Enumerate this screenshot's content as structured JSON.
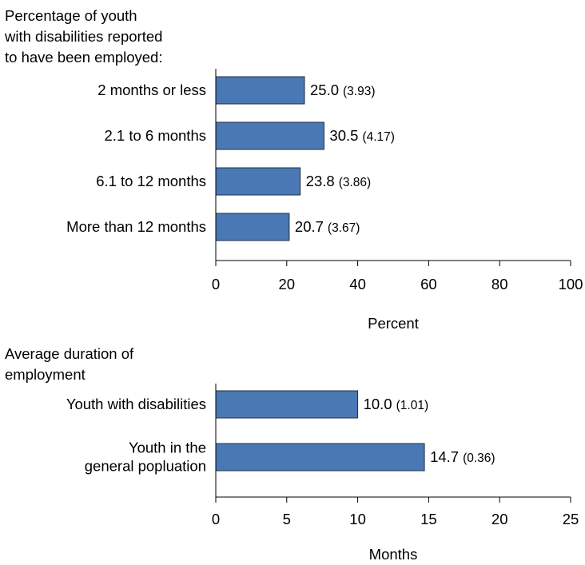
{
  "chart_data": [
    {
      "type": "bar",
      "orientation": "horizontal",
      "title": "Percentage of youth\nwith disabilities reported\nto have been employed:",
      "categories": [
        "2 months or less",
        "2.1 to 6 months",
        "6.1 to 12 months",
        "More than 12 months"
      ],
      "values": [
        25.0,
        30.5,
        23.8,
        20.7
      ],
      "value_labels": [
        "25.0",
        "30.5",
        "23.8",
        "20.7"
      ],
      "se_labels": [
        "(3.93)",
        "(4.17)",
        "(3.86)",
        "(3.67)"
      ],
      "xlabel": "Percent",
      "xlim": [
        0,
        100
      ],
      "xticks": [
        0,
        20,
        40,
        60,
        80,
        100
      ],
      "grid": false,
      "bar_color": "#4a78b4"
    },
    {
      "type": "bar",
      "orientation": "horizontal",
      "title": "Average duration of\nemployment",
      "categories": [
        "Youth with disabilities",
        "Youth in the\ngeneral popluation"
      ],
      "values": [
        10.0,
        14.7
      ],
      "value_labels": [
        "10.0",
        "14.7"
      ],
      "se_labels": [
        "(1.01)",
        "(0.36)"
      ],
      "xlabel": "Months",
      "xlim": [
        0,
        25
      ],
      "xticks": [
        0,
        5,
        10,
        15,
        20,
        25
      ],
      "grid": false,
      "bar_color": "#4a78b4"
    }
  ]
}
